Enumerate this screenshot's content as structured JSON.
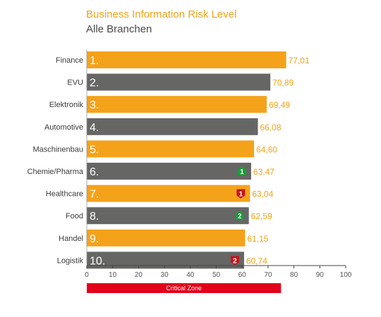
{
  "chart_data": {
    "type": "bar",
    "orientation": "horizontal",
    "title": "Business Information Risk Level",
    "subtitle": "Alle Branchen",
    "categories": [
      "Finance",
      "EVU",
      "Elektronik",
      "Automotive",
      "Maschinenbau",
      "Chemie/Pharma",
      "Healthcare",
      "Food",
      "Handel",
      "Logistik"
    ],
    "ranks": [
      "1.",
      "2.",
      "3.",
      "4.",
      "5.",
      "6.",
      "7.",
      "8.",
      "9.",
      "10."
    ],
    "values": [
      77.01,
      70.89,
      69.49,
      66.08,
      64.6,
      63.47,
      63.04,
      62.59,
      61.15,
      60.74
    ],
    "value_labels": [
      "77,01",
      "70,89",
      "69,49",
      "66,08",
      "64,60",
      "63,47",
      "63,04",
      "62,59",
      "61,15",
      "60,74"
    ],
    "badges": [
      null,
      null,
      null,
      null,
      null,
      {
        "text": "1",
        "direction": "up"
      },
      {
        "text": "1",
        "direction": "down"
      },
      {
        "text": "2",
        "direction": "up"
      },
      null,
      {
        "text": "2",
        "direction": "down"
      }
    ],
    "xlim": [
      0,
      100
    ],
    "xticks": [
      0,
      10,
      20,
      30,
      40,
      50,
      60,
      70,
      80,
      90,
      100
    ],
    "critical_zone": {
      "label": "Critical Zone",
      "range": [
        0,
        75
      ]
    },
    "grid": false,
    "colors": {
      "bar_odd": "#f5a21b",
      "bar_even": "#666665",
      "value_text": "#f0a31b",
      "category_text": "#3c3c3c",
      "critical": "#e3001b",
      "badge_up": "#1e9a3a",
      "badge_down": "#c4161c",
      "title": "#f0a31b",
      "subtitle": "#4a4a4a"
    }
  }
}
